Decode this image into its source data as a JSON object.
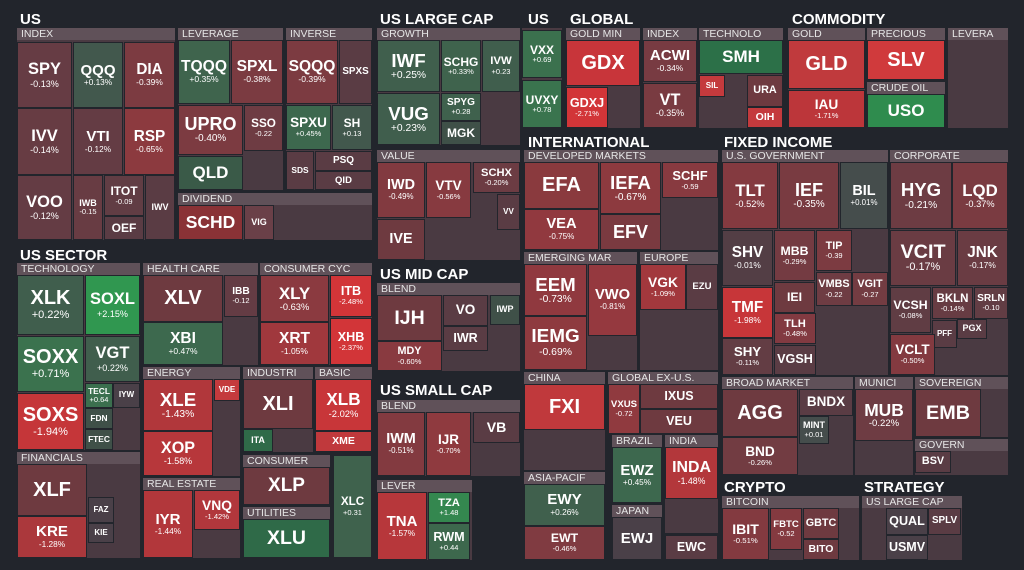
{
  "groups": [
    {
      "title": "US",
      "sections": [
        {
          "title": "INDEX",
          "tiles": [
            {
              "ticker": "SPY",
              "change": "-0.13%"
            },
            {
              "ticker": "QQQ",
              "change": "+0.13%"
            },
            {
              "ticker": "DIA",
              "change": "-0.39%"
            },
            {
              "ticker": "IVV",
              "change": "-0.14%"
            },
            {
              "ticker": "VTI",
              "change": "-0.12%"
            },
            {
              "ticker": "RSP",
              "change": "-0.65%"
            },
            {
              "ticker": "VOO",
              "change": "-0.12%"
            },
            {
              "ticker": "IWB",
              "change": "-0.15"
            },
            {
              "ticker": "ITOT",
              "change": "-0.09"
            },
            {
              "ticker": "OEF"
            },
            {
              "ticker": "IWV"
            }
          ]
        },
        {
          "title": "LEVERAGE",
          "tiles": [
            {
              "ticker": "TQQQ",
              "change": "+0.35%"
            },
            {
              "ticker": "SPXL",
              "change": "-0.38%"
            },
            {
              "ticker": "UPRO",
              "change": "-0.40%"
            },
            {
              "ticker": "SSO",
              "change": "-0.22"
            },
            {
              "ticker": "QLD"
            }
          ]
        },
        {
          "title": "INVERSE",
          "tiles": [
            {
              "ticker": "SQQQ",
              "change": "-0.39%"
            },
            {
              "ticker": "SPXS"
            },
            {
              "ticker": "SPXU",
              "change": "+0.45%"
            },
            {
              "ticker": "SH",
              "change": "+0.13"
            },
            {
              "ticker": "SDS"
            },
            {
              "ticker": "PSQ"
            },
            {
              "ticker": "QID"
            }
          ]
        },
        {
          "title": "DIVIDEND",
          "tiles": [
            {
              "ticker": "SCHD"
            },
            {
              "ticker": "VIG"
            }
          ]
        }
      ]
    },
    {
      "title": "US LARGE CAP",
      "sections": [
        {
          "title": "GROWTH",
          "tiles": [
            {
              "ticker": "IWF",
              "change": "+0.25%"
            },
            {
              "ticker": "SCHG",
              "change": "+0.33%"
            },
            {
              "ticker": "IVW",
              "change": "+0.23"
            },
            {
              "ticker": "VUG",
              "change": "+0.23%"
            },
            {
              "ticker": "SPYG",
              "change": "+0.28"
            },
            {
              "ticker": "MGK"
            }
          ]
        },
        {
          "title": "VALUE",
          "tiles": [
            {
              "ticker": "IWD",
              "change": "-0.49%"
            },
            {
              "ticker": "VTV",
              "change": "-0.56%"
            },
            {
              "ticker": "SCHX",
              "change": "-0.20%"
            },
            {
              "ticker": "VV"
            },
            {
              "ticker": "IVE"
            }
          ]
        }
      ]
    },
    {
      "title": "US",
      "sections": [
        {
          "tiles": [
            {
              "ticker": "VXX",
              "change": "+0.69"
            },
            {
              "ticker": "UVXY",
              "change": "+0.78"
            }
          ]
        }
      ]
    },
    {
      "title": "GLOBAL",
      "sections": [
        {
          "title": "GOLD MIN",
          "tiles": [
            {
              "ticker": "GDX"
            },
            {
              "ticker": "GDXJ",
              "change": "-2.71%"
            }
          ]
        },
        {
          "title": "INDEX",
          "tiles": [
            {
              "ticker": "ACWI",
              "change": "-0.34%"
            },
            {
              "ticker": "VT",
              "change": "-0.35%"
            }
          ]
        },
        {
          "title": "TECHNOLO",
          "tiles": [
            {
              "ticker": "SMH"
            },
            {
              "ticker": "SIL"
            },
            {
              "ticker": "URA"
            },
            {
              "ticker": "OIH"
            }
          ]
        }
      ]
    },
    {
      "title": "COMMODITY",
      "sections": [
        {
          "title": "GOLD",
          "tiles": [
            {
              "ticker": "GLD"
            },
            {
              "ticker": "IAU",
              "change": "-1.71%"
            }
          ]
        },
        {
          "title": "PRECIOUS",
          "tiles": [
            {
              "ticker": "SLV"
            }
          ]
        },
        {
          "title": "CRUDE OIL",
          "tiles": [
            {
              "ticker": "USO"
            }
          ]
        },
        {
          "title": "LEVERA",
          "tiles": []
        }
      ]
    },
    {
      "title": "US SECTOR",
      "sections": [
        {
          "title": "TECHNOLOGY",
          "tiles": [
            {
              "ticker": "XLK",
              "change": "+0.22%"
            },
            {
              "ticker": "SOXL",
              "change": "+2.15%"
            },
            {
              "ticker": "SOXX",
              "change": "+0.71%"
            },
            {
              "ticker": "VGT",
              "change": "+0.22%"
            },
            {
              "ticker": "SOXS",
              "change": "-1.94%"
            },
            {
              "ticker": "TECL",
              "change": "+0.64"
            },
            {
              "ticker": "IYW"
            },
            {
              "ticker": "FDN"
            },
            {
              "ticker": "FTEC"
            }
          ]
        },
        {
          "title": "HEALTH CARE",
          "tiles": [
            {
              "ticker": "XLV"
            },
            {
              "ticker": "IBB",
              "change": "-0.12"
            },
            {
              "ticker": "XBI",
              "change": "+0.47%"
            }
          ]
        },
        {
          "title": "CONSUMER CYC",
          "tiles": [
            {
              "ticker": "XLY",
              "change": "-0.63%"
            },
            {
              "ticker": "ITB",
              "change": "-2.48%"
            },
            {
              "ticker": "XRT",
              "change": "-1.05%"
            },
            {
              "ticker": "XHB",
              "change": "-2.37%"
            }
          ]
        },
        {
          "title": "ENERGY",
          "tiles": [
            {
              "ticker": "XLE",
              "change": "-1.43%"
            },
            {
              "ticker": "VDE"
            },
            {
              "ticker": "XOP",
              "change": "-1.58%"
            }
          ]
        },
        {
          "title": "INDUSTRI",
          "tiles": [
            {
              "ticker": "XLI"
            },
            {
              "ticker": "ITA"
            }
          ]
        },
        {
          "title": "BASIC",
          "tiles": [
            {
              "ticker": "XLB",
              "change": "-2.02%"
            },
            {
              "ticker": "XME"
            }
          ]
        },
        {
          "title": "CONSUMER",
          "tiles": [
            {
              "ticker": "XLP"
            }
          ]
        },
        {
          "title": "UTILITIES",
          "tiles": [
            {
              "ticker": "XLU"
            }
          ]
        },
        {
          "title": "REAL ESTATE",
          "tiles": [
            {
              "ticker": "IYR",
              "change": "-1.44%"
            },
            {
              "ticker": "VNQ",
              "change": "-1.42%"
            }
          ]
        },
        {
          "title": "FINANCIALS",
          "tiles": [
            {
              "ticker": "XLF"
            },
            {
              "ticker": "KRE",
              "change": "-1.28%"
            },
            {
              "ticker": "FAZ"
            },
            {
              "ticker": "KIE"
            }
          ]
        },
        {
          "tiles": [
            {
              "ticker": "XLC",
              "change": "+0.31"
            }
          ]
        }
      ]
    },
    {
      "title": "US MID CAP",
      "sections": [
        {
          "title": "BLEND",
          "tiles": [
            {
              "ticker": "IJH"
            },
            {
              "ticker": "VO"
            },
            {
              "ticker": "IWR"
            },
            {
              "ticker": "IWP"
            },
            {
              "ticker": "MDY",
              "change": "-0.60%"
            }
          ]
        }
      ]
    },
    {
      "title": "US SMALL CAP",
      "sections": [
        {
          "title": "BLEND",
          "tiles": [
            {
              "ticker": "IWM",
              "change": "-0.51%"
            },
            {
              "ticker": "IJR",
              "change": "-0.70%"
            },
            {
              "ticker": "VB"
            }
          ]
        },
        {
          "title": "LEVER",
          "tiles": [
            {
              "ticker": "TNA",
              "change": "-1.57%"
            },
            {
              "ticker": "TZA",
              "change": "+1.48"
            },
            {
              "ticker": "RWM",
              "change": "+0.44"
            }
          ]
        }
      ]
    },
    {
      "title": "INTERNATIONAL",
      "sections": [
        {
          "title": "DEVELOPED MARKETS",
          "tiles": [
            {
              "ticker": "EFA"
            },
            {
              "ticker": "VEA",
              "change": "-0.75%"
            },
            {
              "ticker": "IEFA",
              "change": "-0.67%"
            },
            {
              "ticker": "SCHF",
              "change": "-0.59"
            },
            {
              "ticker": "EFV"
            }
          ]
        },
        {
          "title": "EMERGING MAR",
          "tiles": [
            {
              "ticker": "EEM",
              "change": "-0.73%"
            },
            {
              "ticker": "IEMG",
              "change": "-0.69%"
            },
            {
              "ticker": "VWO",
              "change": "-0.81%"
            }
          ]
        },
        {
          "title": "EUROPE",
          "tiles": [
            {
              "ticker": "VGK",
              "change": "-1.09%"
            },
            {
              "ticker": "EZU"
            }
          ]
        },
        {
          "title": "CHINA",
          "tiles": [
            {
              "ticker": "FXI"
            }
          ]
        },
        {
          "title": "GLOBAL EX-U.S.",
          "tiles": [
            {
              "ticker": "VXUS",
              "change": "-0.72"
            },
            {
              "ticker": "IXUS"
            },
            {
              "ticker": "VEU"
            }
          ]
        },
        {
          "title": "BRAZIL",
          "tiles": [
            {
              "ticker": "EWZ",
              "change": "+0.45%"
            }
          ]
        },
        {
          "title": "INDIA",
          "tiles": [
            {
              "ticker": "INDA",
              "change": "-1.48%"
            }
          ]
        },
        {
          "title": "ASIA-PACIF",
          "tiles": [
            {
              "ticker": "EWY",
              "change": "+0.26%"
            },
            {
              "ticker": "EWT",
              "change": "-0.46%"
            }
          ]
        },
        {
          "title": "JAPAN",
          "tiles": [
            {
              "ticker": "EWJ"
            }
          ]
        },
        {
          "tiles": [
            {
              "ticker": "EWC"
            }
          ]
        }
      ]
    },
    {
      "title": "FIXED INCOME",
      "sections": [
        {
          "title": "U.S. GOVERNMENT",
          "tiles": [
            {
              "ticker": "TLT",
              "change": "-0.52%"
            },
            {
              "ticker": "IEF",
              "change": "-0.35%"
            },
            {
              "ticker": "BIL",
              "change": "+0.01%"
            },
            {
              "ticker": "SHV",
              "change": "-0.01%"
            },
            {
              "ticker": "MBB",
              "change": "-0.29%"
            },
            {
              "ticker": "TIP",
              "change": "-0.39"
            },
            {
              "ticker": "VMBS",
              "change": "-0.22"
            },
            {
              "ticker": "VGIT",
              "change": "-0.27"
            },
            {
              "ticker": "TMF",
              "change": "-1.98%"
            },
            {
              "ticker": "IEI"
            },
            {
              "ticker": "TLH",
              "change": "-0.48%"
            },
            {
              "ticker": "SHY",
              "change": "-0.11%"
            },
            {
              "ticker": "VGSH"
            }
          ]
        },
        {
          "title": "CORPORATE",
          "tiles": [
            {
              "ticker": "HYG",
              "change": "-0.21%"
            },
            {
              "ticker": "LQD",
              "change": "-0.37%"
            },
            {
              "ticker": "VCIT",
              "change": "-0.17%"
            },
            {
              "ticker": "JNK",
              "change": "-0.17%"
            },
            {
              "ticker": "VCSH",
              "change": "-0.08%"
            },
            {
              "ticker": "BKLN",
              "change": "-0.14%"
            },
            {
              "ticker": "SRLN",
              "change": "-0.10"
            },
            {
              "ticker": "PGX"
            },
            {
              "ticker": "PFF"
            },
            {
              "ticker": "VCLT",
              "change": "-0.50%"
            }
          ]
        },
        {
          "title": "BROAD MARKET",
          "tiles": [
            {
              "ticker": "AGG"
            },
            {
              "ticker": "BNDX"
            },
            {
              "ticker": "MINT",
              "change": "+0.01"
            },
            {
              "ticker": "BND",
              "change": "-0.26%"
            }
          ]
        },
        {
          "title": "MUNICI",
          "tiles": [
            {
              "ticker": "MUB",
              "change": "-0.22%"
            }
          ]
        },
        {
          "title": "SOVEREIGN",
          "tiles": [
            {
              "ticker": "EMB"
            }
          ]
        },
        {
          "title": "GOVERN",
          "tiles": [
            {
              "ticker": "BSV"
            }
          ]
        }
      ]
    },
    {
      "title": "CRYPTO",
      "sections": [
        {
          "title": "BITCOIN",
          "tiles": [
            {
              "ticker": "IBIT",
              "change": "-0.51%"
            },
            {
              "ticker": "FBTC",
              "change": "-0.52"
            },
            {
              "ticker": "GBTC"
            },
            {
              "ticker": "BITO"
            }
          ]
        }
      ]
    },
    {
      "title": "STRATEGY",
      "sections": [
        {
          "title": "US LARGE CAP",
          "tiles": [
            {
              "ticker": "QUAL"
            },
            {
              "ticker": "SPLV"
            },
            {
              "ticker": "USMV"
            }
          ]
        }
      ]
    }
  ]
}
